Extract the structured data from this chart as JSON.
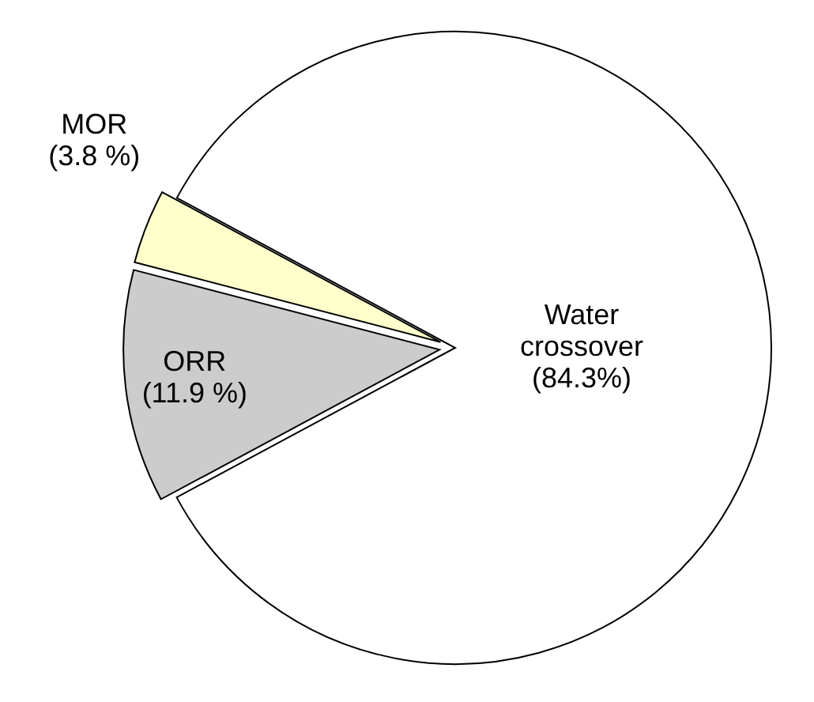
{
  "chart_data": {
    "type": "pie",
    "categories": [
      "Water crossover",
      "ORR",
      "MOR"
    ],
    "values": [
      84.3,
      11.9,
      3.8
    ],
    "value_labels": [
      "(84.3%)",
      "(11.9 %)",
      "(3.8 %)"
    ],
    "colors": [
      "#ffffff",
      "#cccccc",
      "#ffffcc"
    ]
  }
}
